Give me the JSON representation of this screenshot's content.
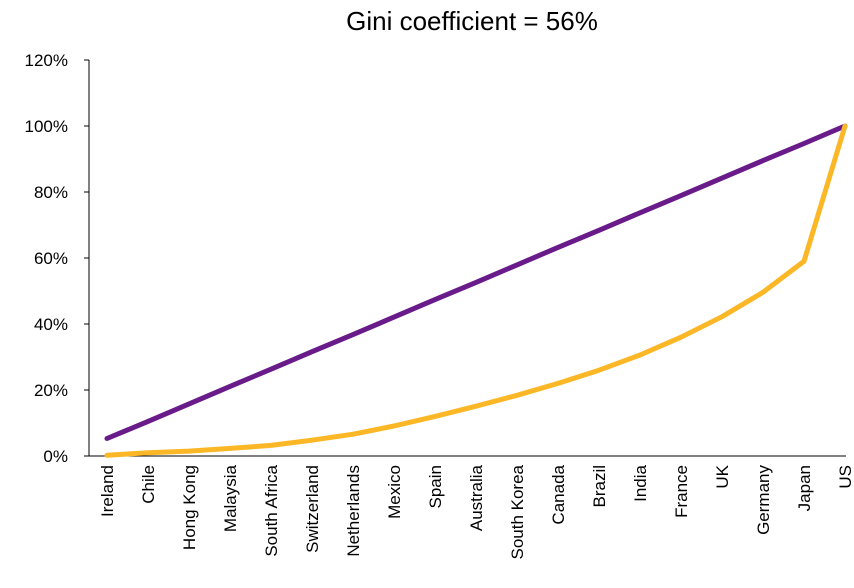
{
  "chart_data": {
    "type": "line",
    "title": "Gini coefficient = 56%",
    "xlabel": "",
    "ylabel": "",
    "categories": [
      "Ireland",
      "Chile",
      "Hong Kong",
      "Malaysia",
      "South Africa",
      "Switzerland",
      "Netherlands",
      "Mexico",
      "Spain",
      "Australia",
      "South Korea",
      "Canada",
      "Brazil",
      "India",
      "France",
      "UK",
      "Germany",
      "Japan",
      "US"
    ],
    "ylim": [
      0,
      120
    ],
    "yticks": [
      "0%",
      "20%",
      "40%",
      "60%",
      "80%",
      "100%",
      "120%"
    ],
    "ytick_values": [
      0,
      20,
      40,
      60,
      80,
      100,
      120
    ],
    "grid": false,
    "legend": "none",
    "series": [
      {
        "color": "#6a1b8a",
        "values": [
          5.3,
          10.5,
          15.8,
          21.1,
          26.3,
          31.6,
          36.8,
          42.1,
          47.4,
          52.6,
          57.9,
          63.2,
          68.4,
          73.7,
          78.9,
          84.2,
          89.5,
          94.7,
          100
        ]
      },
      {
        "color": "#fbb725",
        "values": [
          0.2,
          1.0,
          1.5,
          2.3,
          3.2,
          4.8,
          6.6,
          9.1,
          12.0,
          15.1,
          18.4,
          22.0,
          26.0,
          30.6,
          36.0,
          42.2,
          49.6,
          59.0,
          100
        ]
      }
    ]
  }
}
